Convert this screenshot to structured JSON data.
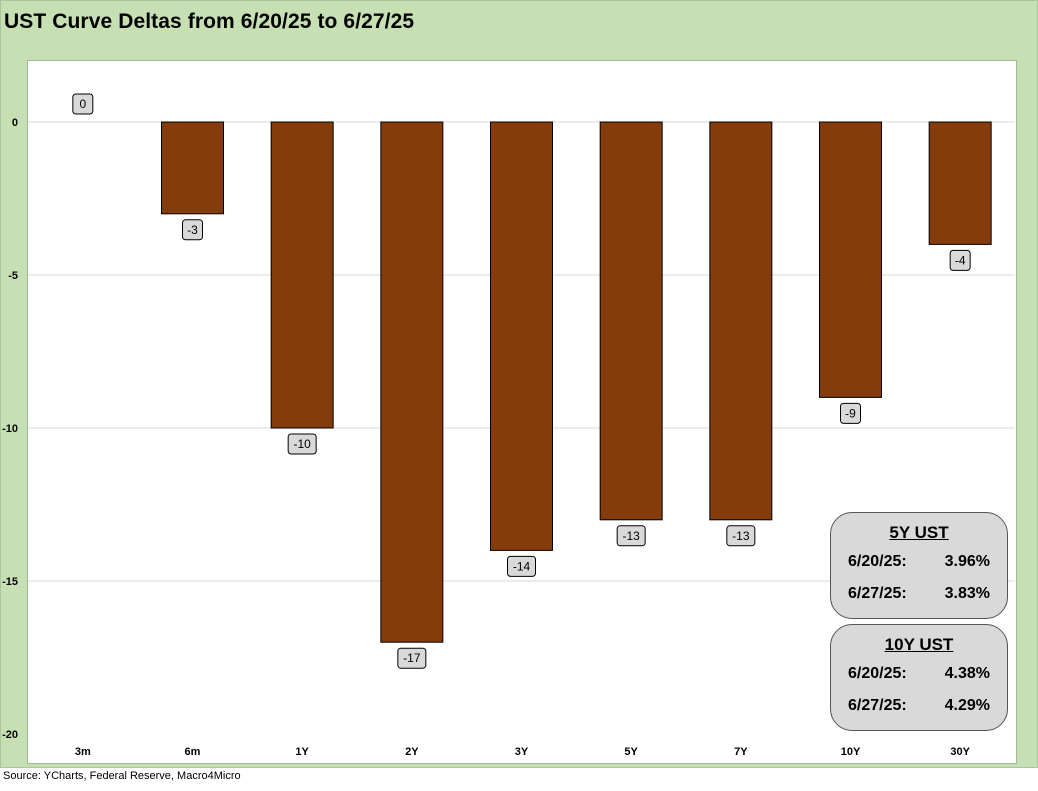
{
  "title": "UST Curve Deltas from 6/20/25 to 6/27/25",
  "source": "Source: YCharts, Federal Reserve, Macro4Micro",
  "colors": {
    "bar": "#843c0c",
    "frame": "#c6e0b4",
    "label_box": "#d9d9d9"
  },
  "chart_data": {
    "type": "bar",
    "categories": [
      "3m",
      "6m",
      "1Y",
      "2Y",
      "3Y",
      "5Y",
      "7Y",
      "10Y",
      "30Y"
    ],
    "values": [
      0,
      -3,
      -10,
      -17,
      -14,
      -13,
      -13,
      -9,
      -4
    ],
    "data_labels": [
      "0",
      "-3",
      "-10",
      "-17",
      "-14",
      "-13",
      "-13",
      "-9",
      "-4"
    ],
    "ylim": [
      -20,
      2
    ],
    "yticks": [
      0,
      -5,
      -10,
      -15,
      -20
    ],
    "ytick_labels": [
      "0",
      "-5",
      "-10",
      "-15",
      "-20"
    ],
    "grid": true,
    "legend": "none"
  },
  "boxes": {
    "five_year": {
      "header": "5Y UST",
      "rows": [
        {
          "date": "6/20/25:",
          "value": "3.96%"
        },
        {
          "date": "6/27/25:",
          "value": "3.83%"
        }
      ]
    },
    "ten_year": {
      "header": "10Y UST",
      "rows": [
        {
          "date": "6/20/25:",
          "value": "4.38%"
        },
        {
          "date": "6/27/25:",
          "value": "4.29%"
        }
      ]
    }
  }
}
